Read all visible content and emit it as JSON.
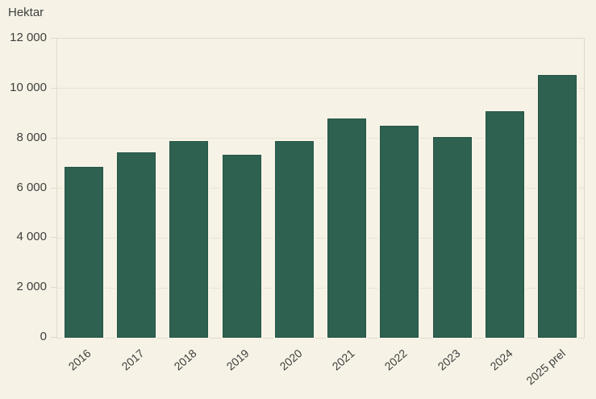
{
  "chart_data": {
    "type": "bar",
    "title": "",
    "ylabel": "Hektar",
    "xlabel": "",
    "categories": [
      "2016",
      "2017",
      "2018",
      "2019",
      "2020",
      "2021",
      "2022",
      "2023",
      "2024",
      "2025 prel"
    ],
    "values": [
      6850,
      7450,
      7900,
      7350,
      7900,
      8800,
      8500,
      8050,
      9100,
      10550
    ],
    "ylim": [
      0,
      12000
    ],
    "yticks": [
      {
        "value": 0,
        "label": "0"
      },
      {
        "value": 2000,
        "label": "2 000"
      },
      {
        "value": 4000,
        "label": "4 000"
      },
      {
        "value": 6000,
        "label": "6 000"
      },
      {
        "value": 8000,
        "label": "8 000"
      },
      {
        "value": 10000,
        "label": "10 000"
      },
      {
        "value": 12000,
        "label": "12 000"
      }
    ],
    "grid": true,
    "legend": "none",
    "colors": {
      "background": "#f6f3e6",
      "bar": "#2e6150",
      "bar_border": "#265548",
      "gridline": "#e7e4d6",
      "frame": "#dedbcd",
      "text": "#3e3e3e"
    }
  }
}
